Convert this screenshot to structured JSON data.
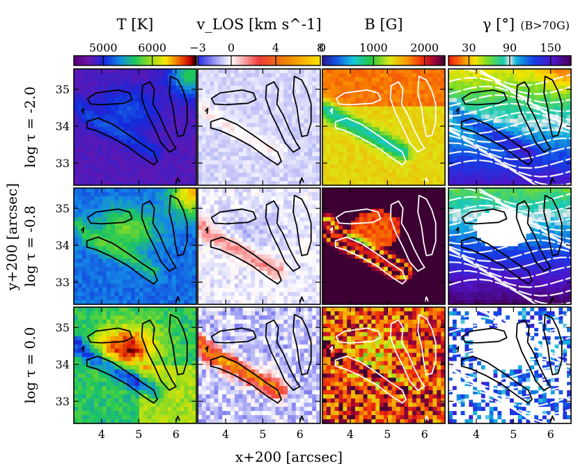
{
  "chart_data": {
    "type": "heatmap",
    "xlabel": "x+200 [arcsec]",
    "ylabel": "y+200 [arcsec]",
    "xlim": [
      3.25,
      6.55
    ],
    "ylim": [
      32.4,
      35.55
    ],
    "xticks": [
      "4",
      "5",
      "6"
    ],
    "yticks": [
      "33",
      "34",
      "35"
    ],
    "columns": [
      {
        "title": "T [K]",
        "cbar_ticks": [
          "5000",
          "6000"
        ],
        "cbar_range": [
          4400,
          6900
        ],
        "contour_color": "#000000"
      },
      {
        "title": "v_LOS [km s^-1]",
        "cbar_ticks": [
          "−3",
          "0",
          "4",
          "8"
        ],
        "cbar_range": [
          -3,
          8
        ],
        "contour_color": "#000000"
      },
      {
        "title": "B [G]",
        "cbar_ticks": [
          "0",
          "1000",
          "2000"
        ],
        "cbar_range": [
          0,
          2400
        ],
        "contour_color": "#ffffff"
      },
      {
        "title": "γ [°]",
        "title_note": "(B>70G)",
        "cbar_ticks": [
          "30",
          "90",
          "150"
        ],
        "cbar_range": [
          0,
          180
        ],
        "contour_color": "#000000"
      }
    ],
    "rows": [
      {
        "label": "log τ = -2.0"
      },
      {
        "label": "log τ = -0.8"
      },
      {
        "label": "log τ = 0.0"
      }
    ]
  }
}
